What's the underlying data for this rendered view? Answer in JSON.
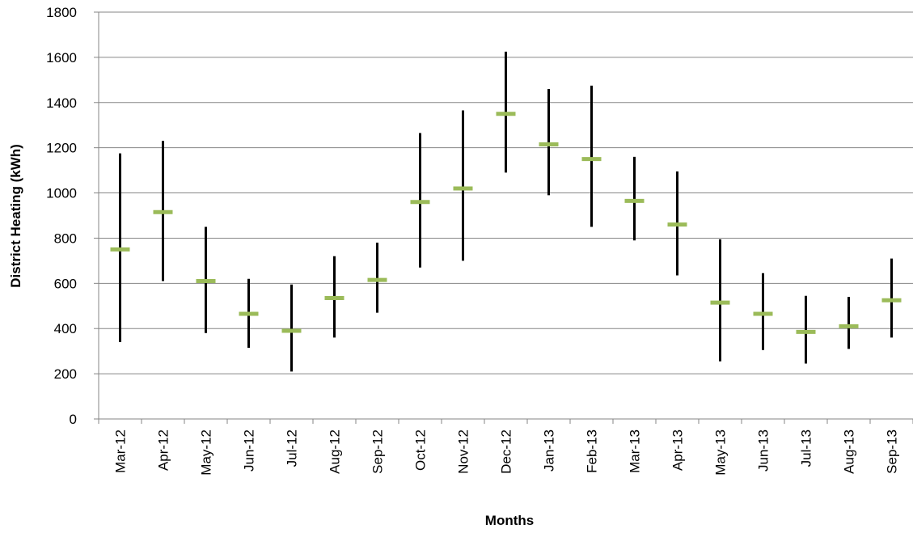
{
  "chart_data": {
    "type": "stock-high-low-average",
    "title": "",
    "xlabel": "Months",
    "ylabel": "District Heating (kWh)",
    "ylim": [
      0,
      1800
    ],
    "y_ticks": [
      0,
      200,
      400,
      600,
      800,
      1000,
      1200,
      1400,
      1600,
      1800
    ],
    "grid": true,
    "legend": "none",
    "categories": [
      "Mar-12",
      "Apr-12",
      "May-12",
      "Jun-12",
      "Jul-12",
      "Aug-12",
      "Sep-12",
      "Oct-12",
      "Nov-12",
      "Dec-12",
      "Jan-13",
      "Feb-13",
      "Mar-13",
      "Apr-13",
      "May-13",
      "Jun-13",
      "Jul-13",
      "Aug-13",
      "Sep-13"
    ],
    "high": [
      1175,
      1230,
      850,
      620,
      595,
      720,
      780,
      1265,
      1365,
      1625,
      1460,
      1475,
      1160,
      1095,
      795,
      645,
      545,
      540,
      710
    ],
    "low": [
      340,
      610,
      380,
      315,
      210,
      360,
      470,
      670,
      700,
      1090,
      990,
      850,
      790,
      635,
      255,
      305,
      245,
      310,
      360
    ],
    "average": [
      750,
      915,
      610,
      465,
      390,
      535,
      615,
      960,
      1020,
      1350,
      1215,
      1150,
      965,
      860,
      515,
      465,
      385,
      410,
      525
    ],
    "colors": {
      "range_line": "#000000",
      "average_marker": "#9bbb59",
      "gridline": "#868686",
      "axis": "#868686"
    }
  }
}
